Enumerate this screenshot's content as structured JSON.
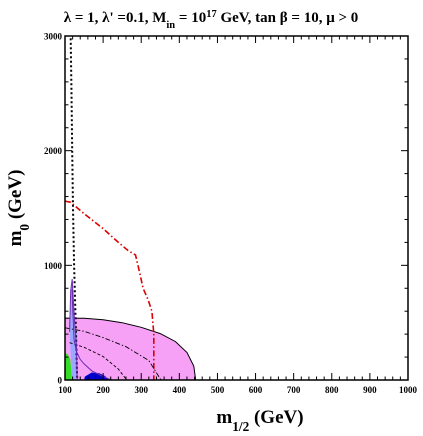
{
  "chart_data": {
    "type": "line",
    "title": {
      "parts": [
        {
          "text": "λ = 1,  λ' =0.1, M"
        },
        {
          "text": "in",
          "sub": true
        },
        {
          "text": " = 10"
        },
        {
          "text": "17",
          "sup": true
        },
        {
          "text": " GeV, tan β = 10,  μ > 0"
        }
      ]
    },
    "xlabel": {
      "main": "m",
      "sub": "1/2",
      "rest": " (GeV)"
    },
    "ylabel": {
      "main": "m",
      "sub": "0",
      "rest": " (GeV)"
    },
    "xlim": [
      100,
      1000
    ],
    "ylim": [
      0,
      3000
    ],
    "x_ticks": [
      100,
      200,
      300,
      400,
      500,
      600,
      700,
      800,
      900,
      1000
    ],
    "y_ticks": [
      0,
      1000,
      2000,
      3000
    ],
    "x_minor_step": 20,
    "y_minor_step": 200,
    "grid": false,
    "colors": {
      "pink_region": "#f6a0f6",
      "green_region": "#33dd22",
      "blue_strip": "#0000cc",
      "light_blue_band": "#9aa8ff",
      "black_dashed": "#000000",
      "red_dash_dot": "#dd0000"
    },
    "regions": [
      {
        "name": "pink",
        "color": "#f6a0f6",
        "stroke": "#000000",
        "points": [
          [
            100,
            0
          ],
          [
            100,
            540
          ],
          [
            150,
            538
          ],
          [
            200,
            525
          ],
          [
            250,
            500
          ],
          [
            300,
            460
          ],
          [
            350,
            405
          ],
          [
            390,
            335
          ],
          [
            420,
            240
          ],
          [
            438,
            120
          ],
          [
            443,
            0
          ]
        ]
      },
      {
        "name": "green",
        "color": "#33dd22",
        "stroke": "none",
        "points": [
          [
            100,
            0
          ],
          [
            100,
            230
          ],
          [
            106,
            230
          ],
          [
            114,
            180
          ],
          [
            118,
            0
          ]
        ]
      },
      {
        "name": "blue-strip",
        "color": "#0000cc",
        "stroke": "none",
        "points": [
          [
            150,
            0
          ],
          [
            152,
            30
          ],
          [
            170,
            65
          ],
          [
            190,
            58
          ],
          [
            205,
            35
          ],
          [
            215,
            0
          ]
        ]
      },
      {
        "name": "light-blue-band",
        "color": "#9aa8ff",
        "stroke": "none",
        "points": [
          [
            112,
            440
          ],
          [
            118,
            880
          ],
          [
            125,
            540
          ],
          [
            132,
            380
          ],
          [
            130,
            0
          ],
          [
            118,
            0
          ]
        ]
      }
    ],
    "series": [
      {
        "style": "black-dashed",
        "color": "#000000",
        "dash": "2,2.5",
        "width": 2,
        "x": [
          115,
          117,
          119,
          121,
          124,
          128,
          132
        ],
        "y": [
          2980,
          2500,
          2000,
          1500,
          1000,
          500,
          0
        ]
      },
      {
        "style": "red-dash-dot",
        "color": "#dd0000",
        "dash": "6,2.5,1.5,2.5",
        "width": 1.6,
        "x": [
          100,
          115,
          150,
          200,
          240,
          265,
          285,
          295,
          305,
          318,
          328,
          333,
          333
        ],
        "y": [
          1560,
          1550,
          1450,
          1320,
          1200,
          1130,
          1090,
          950,
          800,
          700,
          600,
          400,
          0
        ]
      },
      {
        "style": "black-dashdot-inner",
        "color": "#000000",
        "dash": "5,2,1.5,2",
        "width": 0.9,
        "x": [
          100,
          150,
          200,
          260,
          320,
          352
        ],
        "y": [
          455,
          425,
          370,
          290,
          170,
          0
        ]
      },
      {
        "style": "black-dashed-inner",
        "color": "#000000",
        "dash": "3,2",
        "width": 0.9,
        "x": [
          112,
          150,
          200,
          240,
          262
        ],
        "y": [
          325,
          285,
          205,
          95,
          0
        ]
      },
      {
        "style": "purple-solid",
        "color": "#6a2bb0",
        "dash": "",
        "width": 1,
        "x": [
          118,
          124,
          130,
          140,
          150,
          170,
          200,
          222
        ],
        "y": [
          790,
          350,
          250,
          180,
          140,
          80,
          30,
          0
        ]
      },
      {
        "style": "purple-thin",
        "color": "#6a2bb0",
        "dash": "",
        "width": 1,
        "x": [
          112,
          115,
          119,
          125,
          130,
          132
        ],
        "y": [
          420,
          780,
          880,
          520,
          300,
          0
        ]
      }
    ]
  }
}
